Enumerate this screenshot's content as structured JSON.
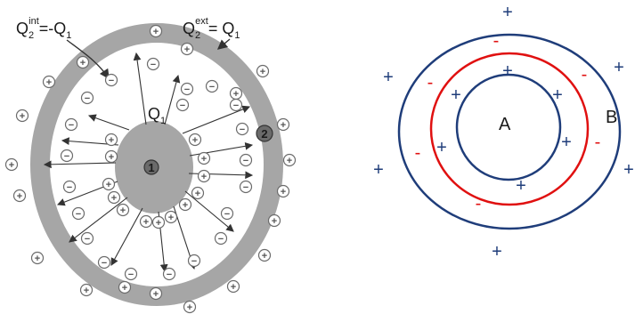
{
  "left_diagram": {
    "q2_int_label": {
      "base": "Q",
      "sub": "2",
      "sup": "int",
      "rest": "=-Q",
      "sub2": "1"
    },
    "q2_ext_label": {
      "base": "Q",
      "sub": "2",
      "sup": "ext",
      "rest": "= Q",
      "sub2": "1"
    },
    "q1_label": {
      "base": "Q",
      "sub": "1"
    },
    "conductor_1_label": "1",
    "conductor_2_label": "2",
    "plus_symbol": "+",
    "minus_symbol": "−",
    "colors": {
      "shell": "#a6a6a6",
      "core": "#a6a6a6",
      "arrow": "#333333",
      "symbol_stroke": "#6b6b6b"
    }
  },
  "right_diagram": {
    "label_a": "A",
    "label_b": "B",
    "plus_symbol": "+",
    "minus_symbol": "-",
    "colors": {
      "blue": "#1f3d7a",
      "red": "#e01010"
    }
  }
}
